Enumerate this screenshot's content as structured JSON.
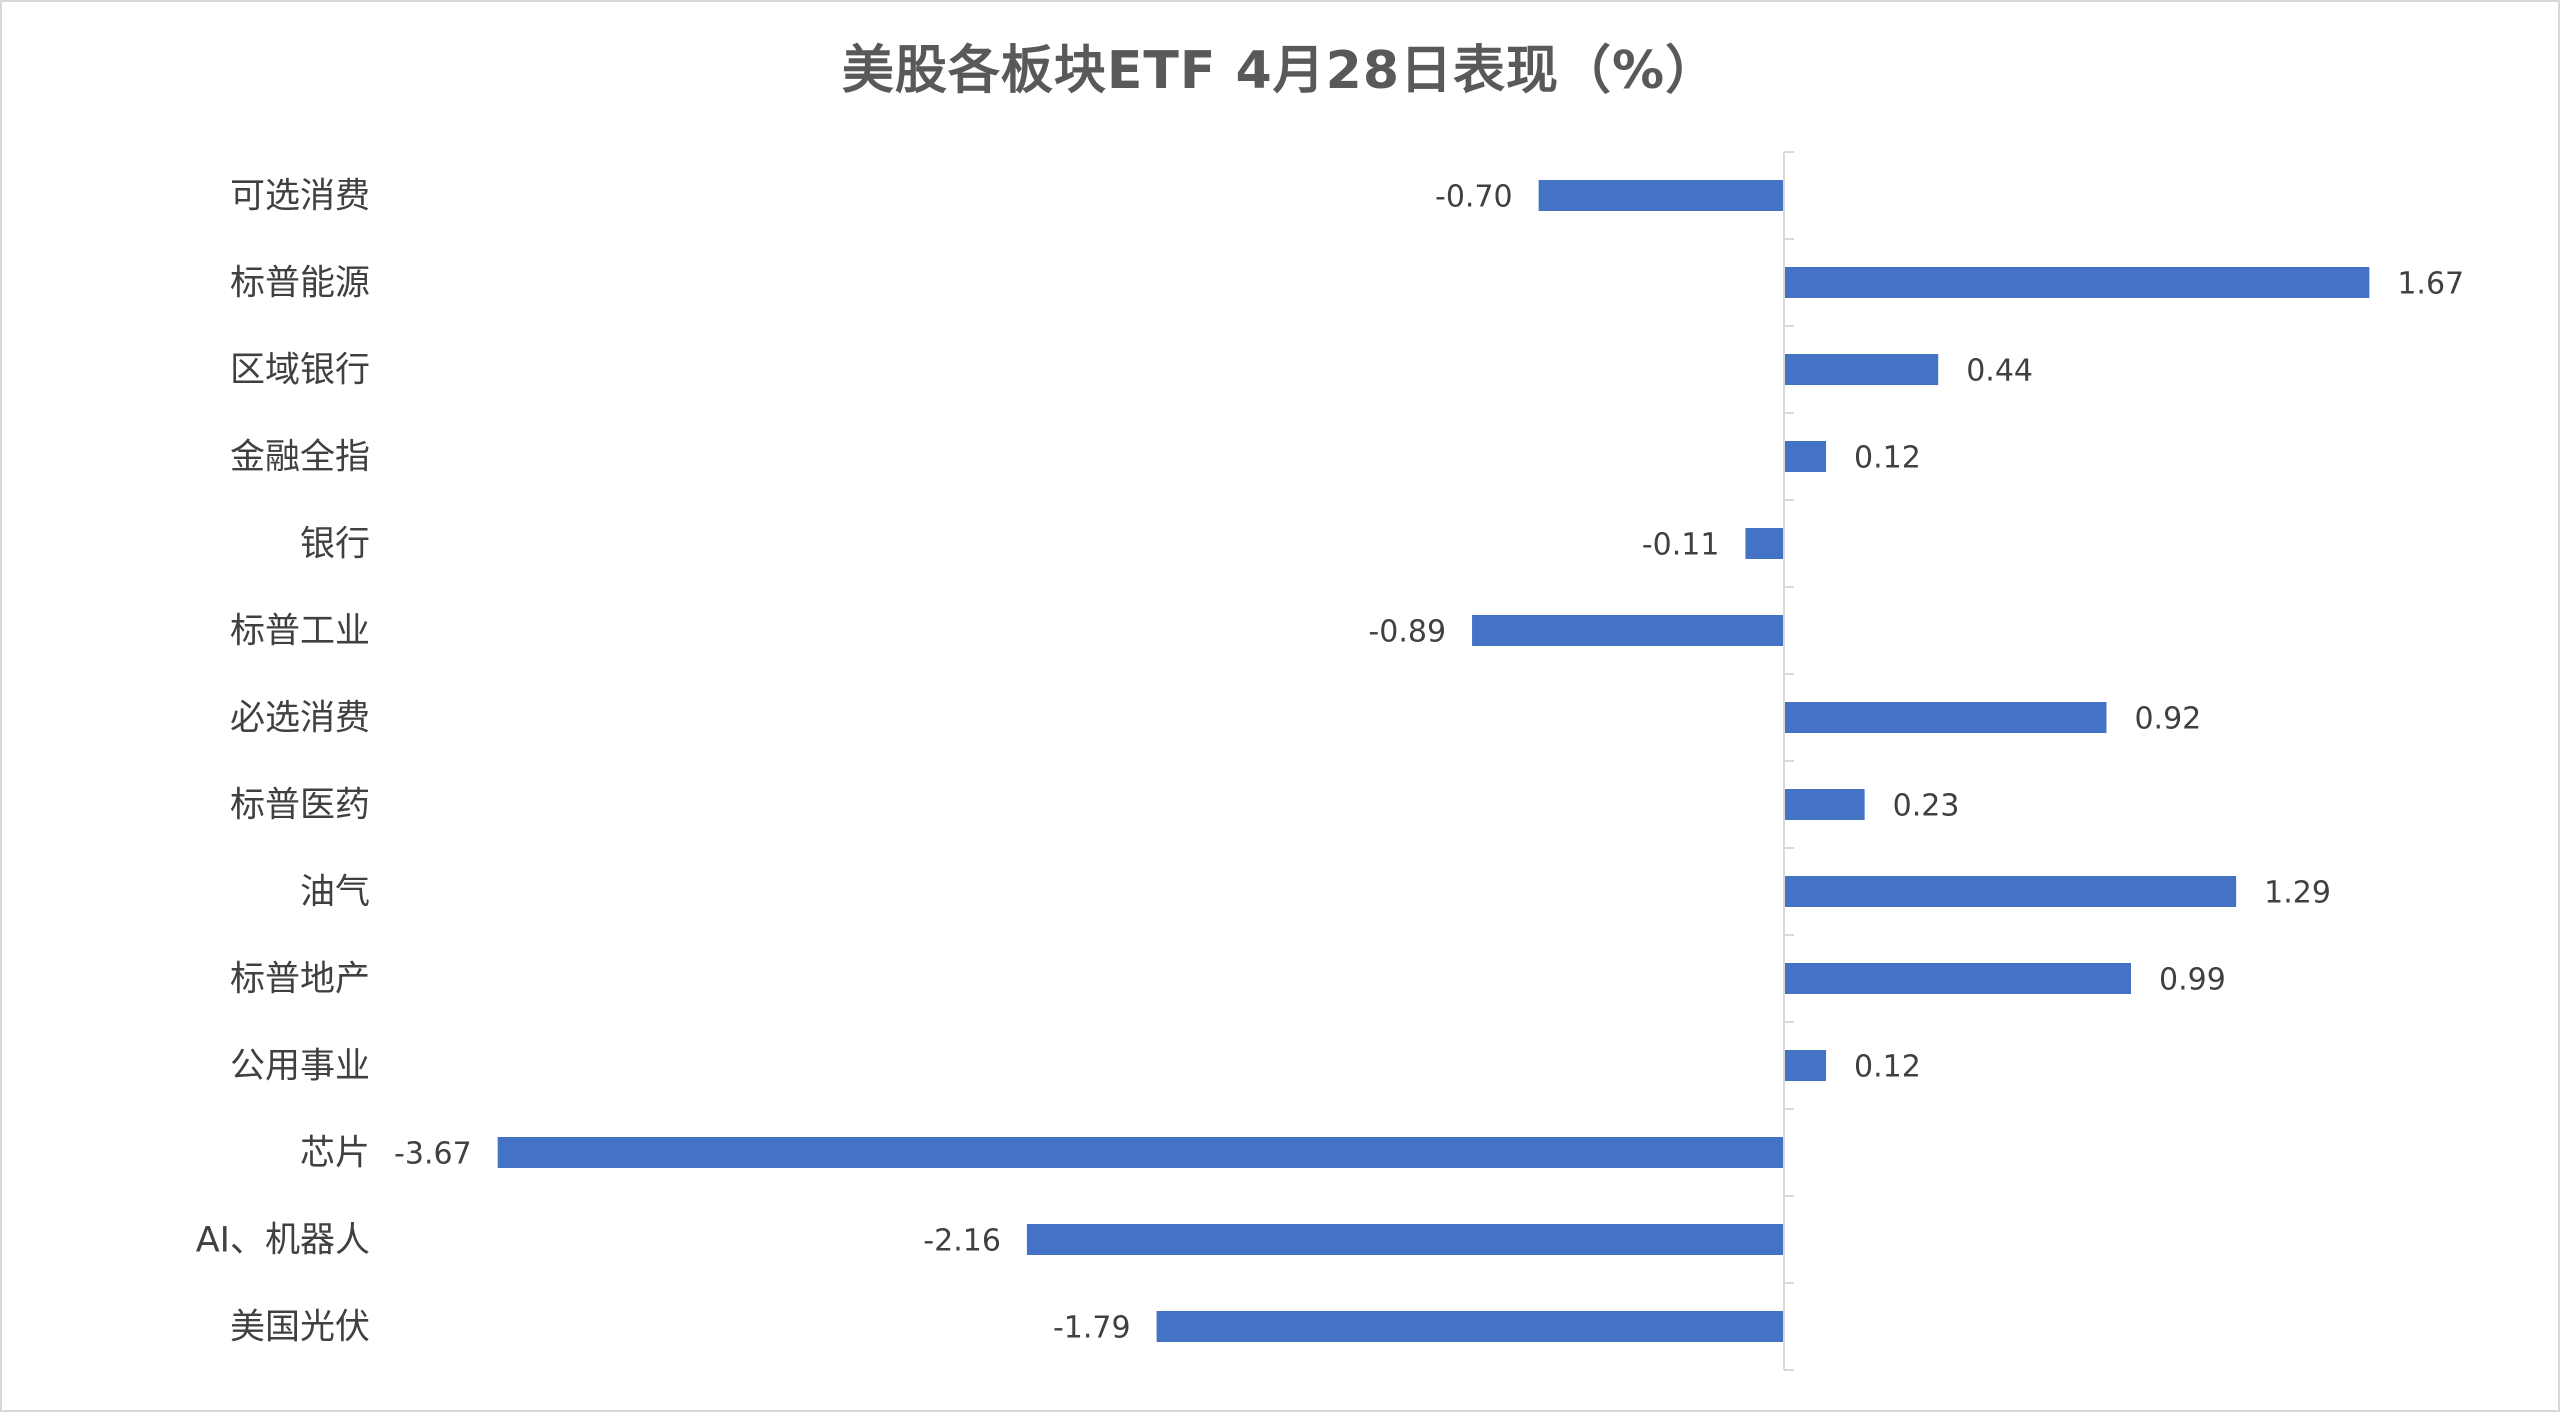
{
  "chart_data": {
    "type": "bar",
    "orientation": "horizontal",
    "title": "美股各板块ETF  4月28日表现（%）",
    "categories": [
      "可选消费",
      "标普能源",
      "区域银行",
      "金融全指",
      "银行",
      "标普工业",
      "必选消费",
      "标普医药",
      "油气",
      "标普地产",
      "公用事业",
      "芯片",
      "AI、机器人",
      "美国光伏"
    ],
    "values": [
      -0.7,
      1.67,
      0.44,
      0.12,
      -0.11,
      -0.89,
      0.92,
      0.23,
      1.29,
      0.99,
      0.12,
      -3.67,
      -2.16,
      -1.79
    ],
    "value_labels": [
      "-0.70",
      "1.67",
      "0.44",
      "0.12",
      "-0.11",
      "-0.89",
      "0.92",
      "0.23",
      "1.29",
      "0.99",
      "0.12",
      "-3.67",
      "-2.16",
      "-1.79"
    ],
    "xlim": [
      -4.0,
      2.0
    ],
    "grid": false,
    "legend": "none",
    "bar_color": "#4472C4",
    "axis_color": "#d9d9d9"
  }
}
